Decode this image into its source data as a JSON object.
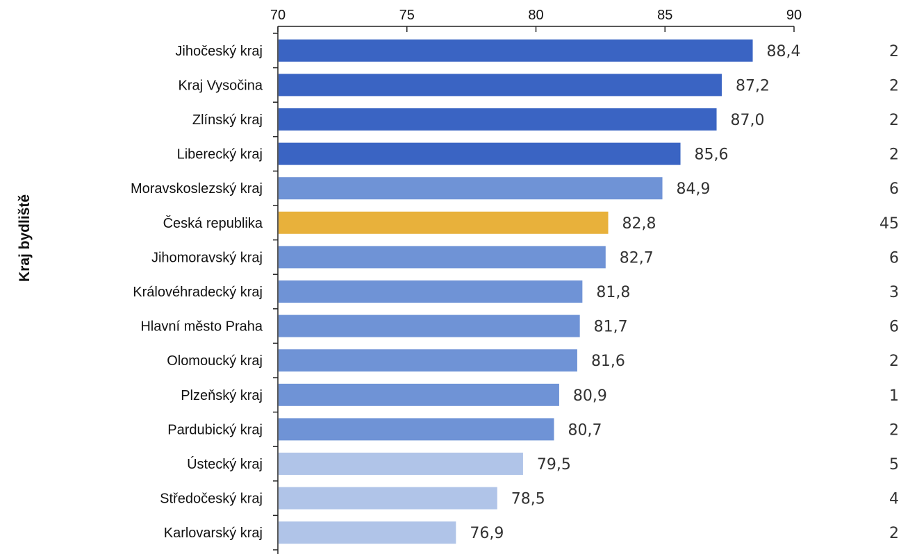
{
  "chart_data": {
    "type": "bar",
    "orientation": "horizontal",
    "title": "",
    "xlabel": "",
    "ylabel": "Kraj bydliště",
    "xlim": [
      70,
      90
    ],
    "x_ticks": [
      "70",
      "75",
      "80",
      "85",
      "90"
    ],
    "x_axis_position": "top",
    "grid": false,
    "categories": [
      "Jihočeský kraj",
      "Kraj Vysočina",
      "Zlínský kraj",
      "Liberecký kraj",
      "Moravskoslezský kraj",
      "Česká republika",
      "Jihomoravský kraj",
      "Královéhradecký kraj",
      "Hlavní město Praha",
      "Olomoucký kraj",
      "Plzeňský kraj",
      "Pardubický kraj",
      "Ústecký kraj",
      "Středočeský kraj",
      "Karlovarský kraj"
    ],
    "values": [
      88.4,
      87.2,
      87.0,
      85.6,
      84.9,
      82.8,
      82.7,
      81.8,
      81.7,
      81.6,
      80.9,
      80.7,
      79.5,
      78.5,
      76.9
    ],
    "value_labels": [
      "88,4",
      "87,2",
      "87,0",
      "85,6",
      "84,9",
      "82,8",
      "82,7",
      "81,8",
      "81,7",
      "81,6",
      "80,9",
      "80,7",
      "79,5",
      "78,5",
      "76,9"
    ],
    "right_labels": [
      "2",
      "2",
      "2",
      "2",
      "6",
      "45",
      "6",
      "3",
      "6",
      "2",
      "1",
      "2",
      "5",
      "4",
      "2"
    ],
    "bar_colors": [
      "#3a64c3",
      "#3a64c3",
      "#3a64c3",
      "#3a64c3",
      "#6f93d6",
      "#e8b13b",
      "#6f93d6",
      "#6f93d6",
      "#6f93d6",
      "#6f93d6",
      "#6f93d6",
      "#6f93d6",
      "#b0c4e8",
      "#b0c4e8",
      "#b0c4e8"
    ],
    "colors": {
      "dark_blue": "#3a64c3",
      "medium_blue": "#6f93d6",
      "light_blue": "#b0c4e8",
      "highlight": "#e8b13b"
    }
  }
}
